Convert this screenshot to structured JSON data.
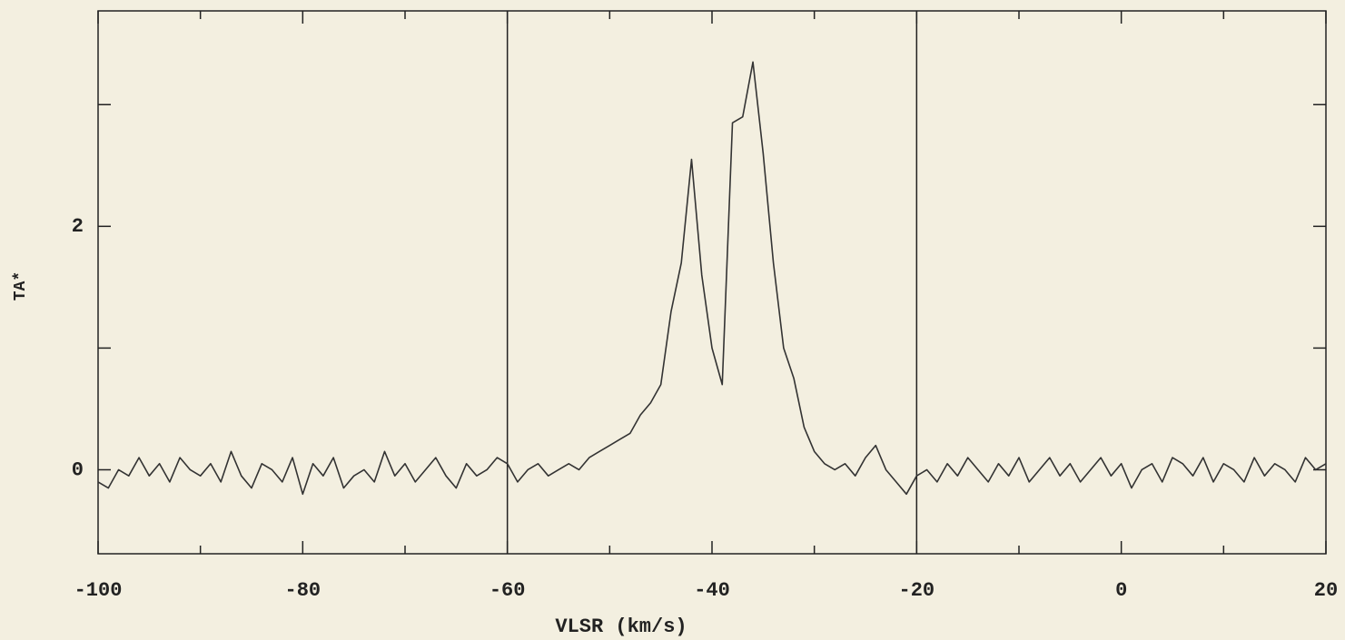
{
  "chart_data": {
    "type": "line",
    "xlabel": "VLSR  (km/s)",
    "ylabel": "TA*",
    "x": [
      -100,
      -99,
      -98,
      -97,
      -96,
      -95,
      -94,
      -93,
      -92,
      -91,
      -90,
      -89,
      -88,
      -87,
      -86,
      -85,
      -84,
      -83,
      -82,
      -81,
      -80,
      -79,
      -78,
      -77,
      -76,
      -75,
      -74,
      -73,
      -72,
      -71,
      -70,
      -69,
      -68,
      -67,
      -66,
      -65,
      -64,
      -63,
      -62,
      -61,
      -60,
      -59,
      -58,
      -57,
      -56,
      -55,
      -54,
      -53,
      -52,
      -51,
      -50,
      -49,
      -48,
      -47,
      -46,
      -45,
      -44,
      -43,
      -42,
      -41,
      -40,
      -39,
      -38,
      -37,
      -36,
      -35,
      -34,
      -33,
      -32,
      -31,
      -30,
      -29,
      -28,
      -27,
      -26,
      -25,
      -24,
      -23,
      -22,
      -21,
      -20,
      -19,
      -18,
      -17,
      -16,
      -15,
      -14,
      -13,
      -12,
      -11,
      -10,
      -9,
      -8,
      -7,
      -6,
      -5,
      -4,
      -3,
      -2,
      -1,
      0,
      1,
      2,
      3,
      4,
      5,
      6,
      7,
      8,
      9,
      10,
      11,
      12,
      13,
      14,
      15,
      16,
      17,
      18,
      19,
      20
    ],
    "series": [
      {
        "color": "#333333",
        "values": [
          -0.1,
          -0.15,
          0.0,
          -0.05,
          0.1,
          -0.05,
          0.05,
          -0.1,
          0.1,
          0.0,
          -0.05,
          0.05,
          -0.1,
          0.15,
          -0.05,
          -0.15,
          0.05,
          0.0,
          -0.1,
          0.1,
          -0.2,
          0.05,
          -0.05,
          0.1,
          -0.15,
          -0.05,
          0.0,
          -0.1,
          0.15,
          -0.05,
          0.05,
          -0.1,
          0.0,
          0.1,
          -0.05,
          -0.15,
          0.05,
          -0.05,
          0.0,
          0.1,
          0.05,
          -0.1,
          0.0,
          0.05,
          -0.05,
          0.0,
          0.05,
          0.0,
          0.1,
          0.15,
          0.2,
          0.25,
          0.3,
          0.45,
          0.55,
          0.7,
          1.3,
          1.7,
          2.55,
          1.6,
          1.0,
          0.7,
          2.85,
          2.9,
          3.35,
          2.6,
          1.7,
          1.0,
          0.75,
          0.35,
          0.15,
          0.05,
          0.0,
          0.05,
          -0.05,
          0.1,
          0.2,
          0.0,
          -0.1,
          -0.2,
          -0.05,
          0.0,
          -0.1,
          0.05,
          -0.05,
          0.1,
          0.0,
          -0.1,
          0.05,
          -0.05,
          0.1,
          -0.1,
          0.0,
          0.1,
          -0.05,
          0.05,
          -0.1,
          0.0,
          0.1,
          -0.05,
          0.05,
          -0.15,
          0.0,
          0.05,
          -0.1,
          0.1,
          0.05,
          -0.05,
          0.1,
          -0.1,
          0.05,
          0.0,
          -0.1,
          0.1,
          -0.05,
          0.05,
          0.0,
          -0.1,
          0.1,
          0.0,
          0.05
        ]
      }
    ],
    "xlim": [
      -100,
      20
    ],
    "xticks": [
      -100,
      -80,
      -60,
      -40,
      -20,
      0,
      20
    ],
    "xticks_minor": [
      -90,
      -70,
      -50,
      -30,
      -10,
      10
    ],
    "ylim": [
      -0.69,
      3.77
    ],
    "yticks": [
      0,
      2
    ],
    "yticks_minor": [
      1,
      3
    ],
    "vlines": [
      -60,
      -20
    ]
  }
}
